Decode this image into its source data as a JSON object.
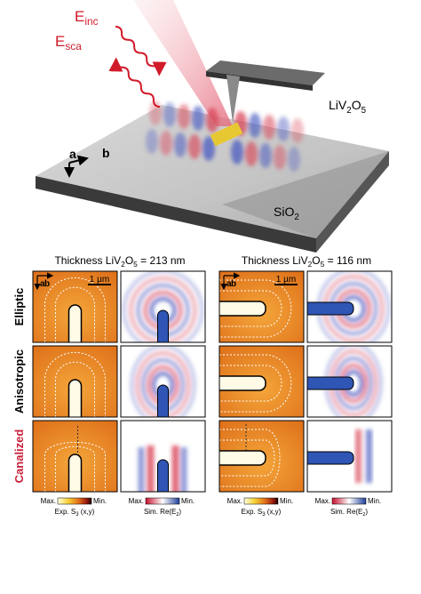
{
  "schematic": {
    "e_inc": {
      "base": "E",
      "sub": "inc"
    },
    "e_sca": {
      "base": "E",
      "sub": "sca"
    },
    "crystal": [
      "LiV",
      "2",
      "O",
      "5"
    ],
    "axis_a": "a",
    "axis_b": "b",
    "substrate": [
      "SiO",
      "2"
    ]
  },
  "columns": [
    {
      "title": [
        "Thickness LiV",
        "2",
        "O",
        "5",
        " = 213 nm"
      ]
    },
    {
      "title": [
        "Thickness LiV",
        "2",
        "O",
        "5",
        " = 116 nm"
      ]
    }
  ],
  "rows": [
    "Elliptic",
    "Anisotropic",
    "Canalized"
  ],
  "panel_axes": {
    "a": "a",
    "b": "b",
    "scale_bar": "1 µm"
  },
  "colorbars": {
    "max": "Max.",
    "min": "Min.",
    "exp_label": [
      "Exp. S",
      "3",
      " (x,y)"
    ],
    "sim_label": [
      "Sim. Re(E",
      "z",
      ")"
    ]
  }
}
